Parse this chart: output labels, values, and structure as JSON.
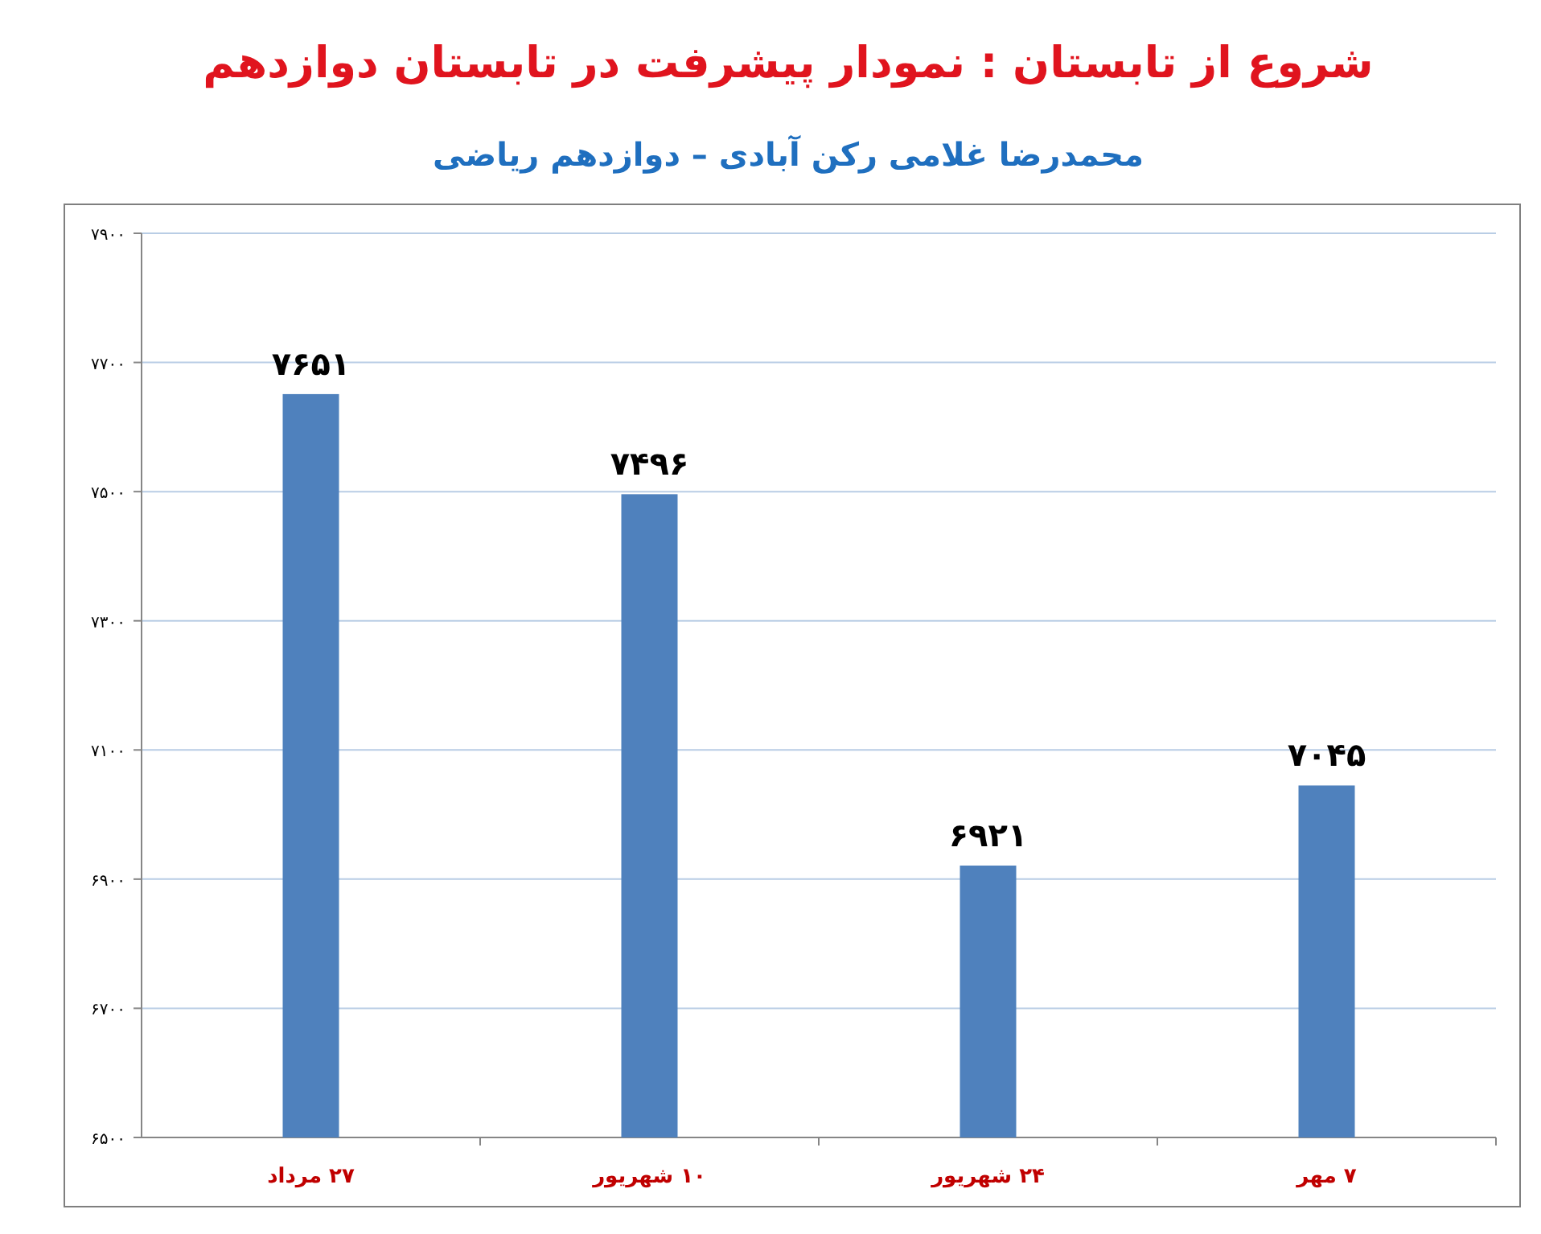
{
  "chart_data": {
    "type": "bar",
    "title": "شروع از تابستان : نمودار پیشرفت در تابستان دوازدهم",
    "subtitle": "محمدرضا غلامی رکن آبادی – دوازدهم ریاضی",
    "categories": [
      "۲۷ مرداد",
      "۱۰ شهریور",
      "۲۴ شهریور",
      "۷ مهر"
    ],
    "values": [
      7651,
      7496,
      6921,
      7045
    ],
    "value_labels": [
      "۷۶۵۱",
      "۷۴۹۶",
      "۶۹۲۱",
      "۷۰۴۵"
    ],
    "color": "#4f81bd",
    "ylim": [
      6500,
      7900
    ],
    "yticks": [
      {
        "value": 6500,
        "label": "۶۵۰۰"
      },
      {
        "value": 6700,
        "label": "۶۷۰۰"
      },
      {
        "value": 6900,
        "label": "۶۹۰۰"
      },
      {
        "value": 7100,
        "label": "۷۱۰۰"
      },
      {
        "value": 7300,
        "label": "۷۳۰۰"
      },
      {
        "value": 7500,
        "label": "۷۵۰۰"
      },
      {
        "value": 7700,
        "label": "۷۷۰۰"
      },
      {
        "value": 7900,
        "label": "۷۹۰۰"
      }
    ],
    "grid": "y"
  }
}
